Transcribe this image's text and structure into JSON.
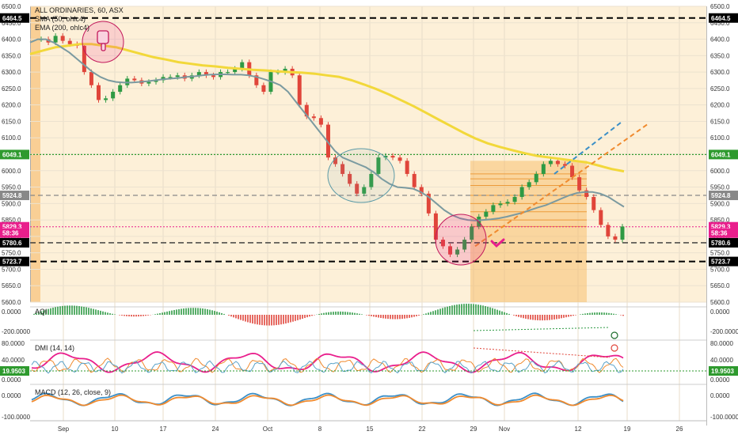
{
  "chart_data": {
    "type": "candlestick",
    "title": "ALL ORDINARIES, 60, ASX",
    "indicators": [
      "SMA (50, ohlc4)",
      "EMA (200, ohlc4)"
    ],
    "x_ticks": [
      "Sep",
      "10",
      "17",
      "24",
      "Oct",
      "8",
      "15",
      "22",
      "29",
      "Nov",
      "12",
      "19",
      "26"
    ],
    "y_ticks": [
      6500,
      6450,
      6400,
      6350,
      6300,
      6250,
      6200,
      6150,
      6100,
      6050,
      6000,
      5950,
      5900,
      5850,
      5800,
      5750,
      5700,
      5650,
      5600
    ],
    "ylim": [
      5600,
      6500
    ],
    "price_tags": [
      {
        "label": "6464.5",
        "value": 6464.5,
        "color": "#000000"
      },
      {
        "label": "6049.1",
        "value": 6049.1,
        "color": "#2e9a2e"
      },
      {
        "label": "5924.8",
        "value": 5924.8,
        "color": "#888888"
      },
      {
        "label": "5829.3",
        "value": 5829.3,
        "color": "#e91e8c"
      },
      {
        "label": "58:36",
        "value": 5810,
        "color": "#e91e8c"
      },
      {
        "label": "5780.6",
        "value": 5780.6,
        "color": "#000000"
      },
      {
        "label": "5723.7",
        "value": 5723.7,
        "color": "#000000"
      }
    ],
    "close_series": [
      6400,
      6390,
      6410,
      6395,
      6385,
      6380,
      6300,
      6260,
      6215,
      6220,
      6240,
      6260,
      6280,
      6275,
      6265,
      6270,
      6275,
      6285,
      6285,
      6290,
      6280,
      6290,
      6300,
      6290,
      6285,
      6300,
      6300,
      6310,
      6330,
      6290,
      6260,
      6240,
      6300,
      6300,
      6310,
      6290,
      6200,
      6165,
      6160,
      6140,
      6040,
      6020,
      5990,
      5960,
      5930,
      5950,
      5990,
      6040,
      6045,
      6040,
      6030,
      5990,
      5950,
      5930,
      5870,
      5790,
      5770,
      5745,
      5760,
      5790,
      5830,
      5860,
      5875,
      5895,
      5900,
      5905,
      5920,
      5950,
      5965,
      5990,
      6020,
      6030,
      6020,
      6015,
      5980,
      5940,
      5920,
      5880,
      5835,
      5800,
      5790,
      5830
    ],
    "sma_series": [
      6390,
      6400,
      6400,
      6390,
      6375,
      6360,
      6340,
      6320,
      6300,
      6285,
      6275,
      6270,
      6268,
      6268,
      6270,
      6272,
      6275,
      6278,
      6280,
      6282,
      6285,
      6287,
      6290,
      6292,
      6293,
      6293,
      6292,
      6292,
      6290,
      6285,
      6278,
      6270,
      6260,
      6240,
      6210,
      6180,
      6150,
      6120,
      6090,
      6060,
      6040,
      6030,
      6020,
      6010,
      5995,
      5975,
      5960,
      5950,
      5948,
      5945,
      5935,
      5920,
      5900,
      5880,
      5865,
      5855,
      5850,
      5848,
      5850,
      5852,
      5855,
      5860,
      5866,
      5872,
      5880,
      5888,
      5895,
      5905,
      5915,
      5925,
      5932,
      5935,
      5935,
      5930,
      5920,
      5905,
      5890
    ],
    "ema_series": [
      6355,
      6365,
      6375,
      6380,
      6385,
      6385,
      6380,
      6375,
      6365,
      6355,
      6345,
      6338,
      6330,
      6325,
      6320,
      6317,
      6313,
      6310,
      6307,
      6305,
      6302,
      6300,
      6298,
      6295,
      6290,
      6285,
      6275,
      6262,
      6248,
      6232,
      6214,
      6196,
      6176,
      6156,
      6136,
      6116,
      6098,
      6083,
      6072,
      6062,
      6053,
      6045,
      6040,
      6035,
      6030,
      6025,
      6015,
      6005,
      5998
    ],
    "aqi": {
      "name": "AQI",
      "ticks": [
        "0.0000",
        "-200.0000"
      ]
    },
    "dmi": {
      "name": "DMI (14, 14)",
      "ticks": [
        "80.0000",
        "40.0000",
        "0.0000"
      ],
      "value_tag": "19.9503"
    },
    "macd": {
      "name": "MACD (12, 26, close, 9)",
      "ticks": [
        "0.0000",
        "-100.0000"
      ]
    }
  }
}
